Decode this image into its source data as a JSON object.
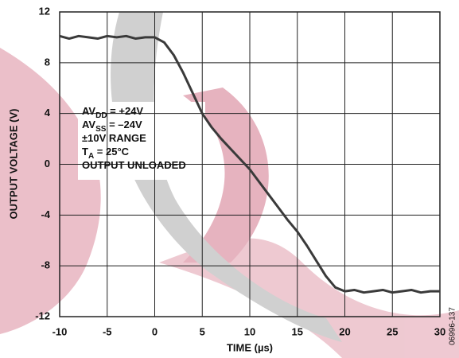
{
  "chart_data": {
    "type": "line",
    "x_label": "TIME (µs)",
    "y_label": "OUTPUT VOLTAGE (V)",
    "figure_id": "06996-137",
    "annotations": [
      {
        "text": "AV",
        "sub": "DD",
        "after": " = +24V"
      },
      {
        "text": "AV",
        "sub": "SS",
        "after": " = –24V"
      },
      {
        "text": "±10V RANGE"
      },
      {
        "text": "T",
        "sub": "A",
        "after": " = 25°C"
      },
      {
        "text": "OUTPUT UNLOADED"
      }
    ],
    "x": [
      -10,
      -9,
      -8,
      -7,
      -6,
      -5,
      -4,
      -3,
      -2,
      -1,
      0,
      1,
      2,
      3,
      4,
      5,
      6,
      7,
      8,
      9,
      10,
      11,
      12,
      13,
      14,
      15,
      16,
      17,
      18,
      19,
      20,
      21,
      22,
      23,
      24,
      25,
      26,
      27,
      28,
      29,
      30
    ],
    "series": [
      {
        "color": "#3a3a3a",
        "values": [
          10.1,
          9.9,
          10.1,
          10.0,
          9.9,
          10.1,
          10.0,
          10.1,
          9.9,
          10.0,
          10.0,
          9.6,
          8.6,
          7.2,
          5.6,
          4.0,
          2.9,
          2.0,
          1.2,
          0.4,
          -0.4,
          -1.4,
          -2.4,
          -3.4,
          -4.4,
          -5.3,
          -6.4,
          -7.6,
          -8.8,
          -9.7,
          -10.0,
          -9.9,
          -10.1,
          -10.0,
          -9.9,
          -10.1,
          -10.0,
          -9.9,
          -10.1,
          -10.0,
          -10.0
        ]
      }
    ],
    "xlim": [
      -10,
      30
    ],
    "xticks": [
      -10,
      -5,
      0,
      5,
      10,
      15,
      20,
      25,
      30
    ],
    "ylim": [
      -12,
      12
    ],
    "yticks": [
      -12,
      -8,
      -4,
      0,
      4,
      8,
      12
    ],
    "grid": true
  }
}
